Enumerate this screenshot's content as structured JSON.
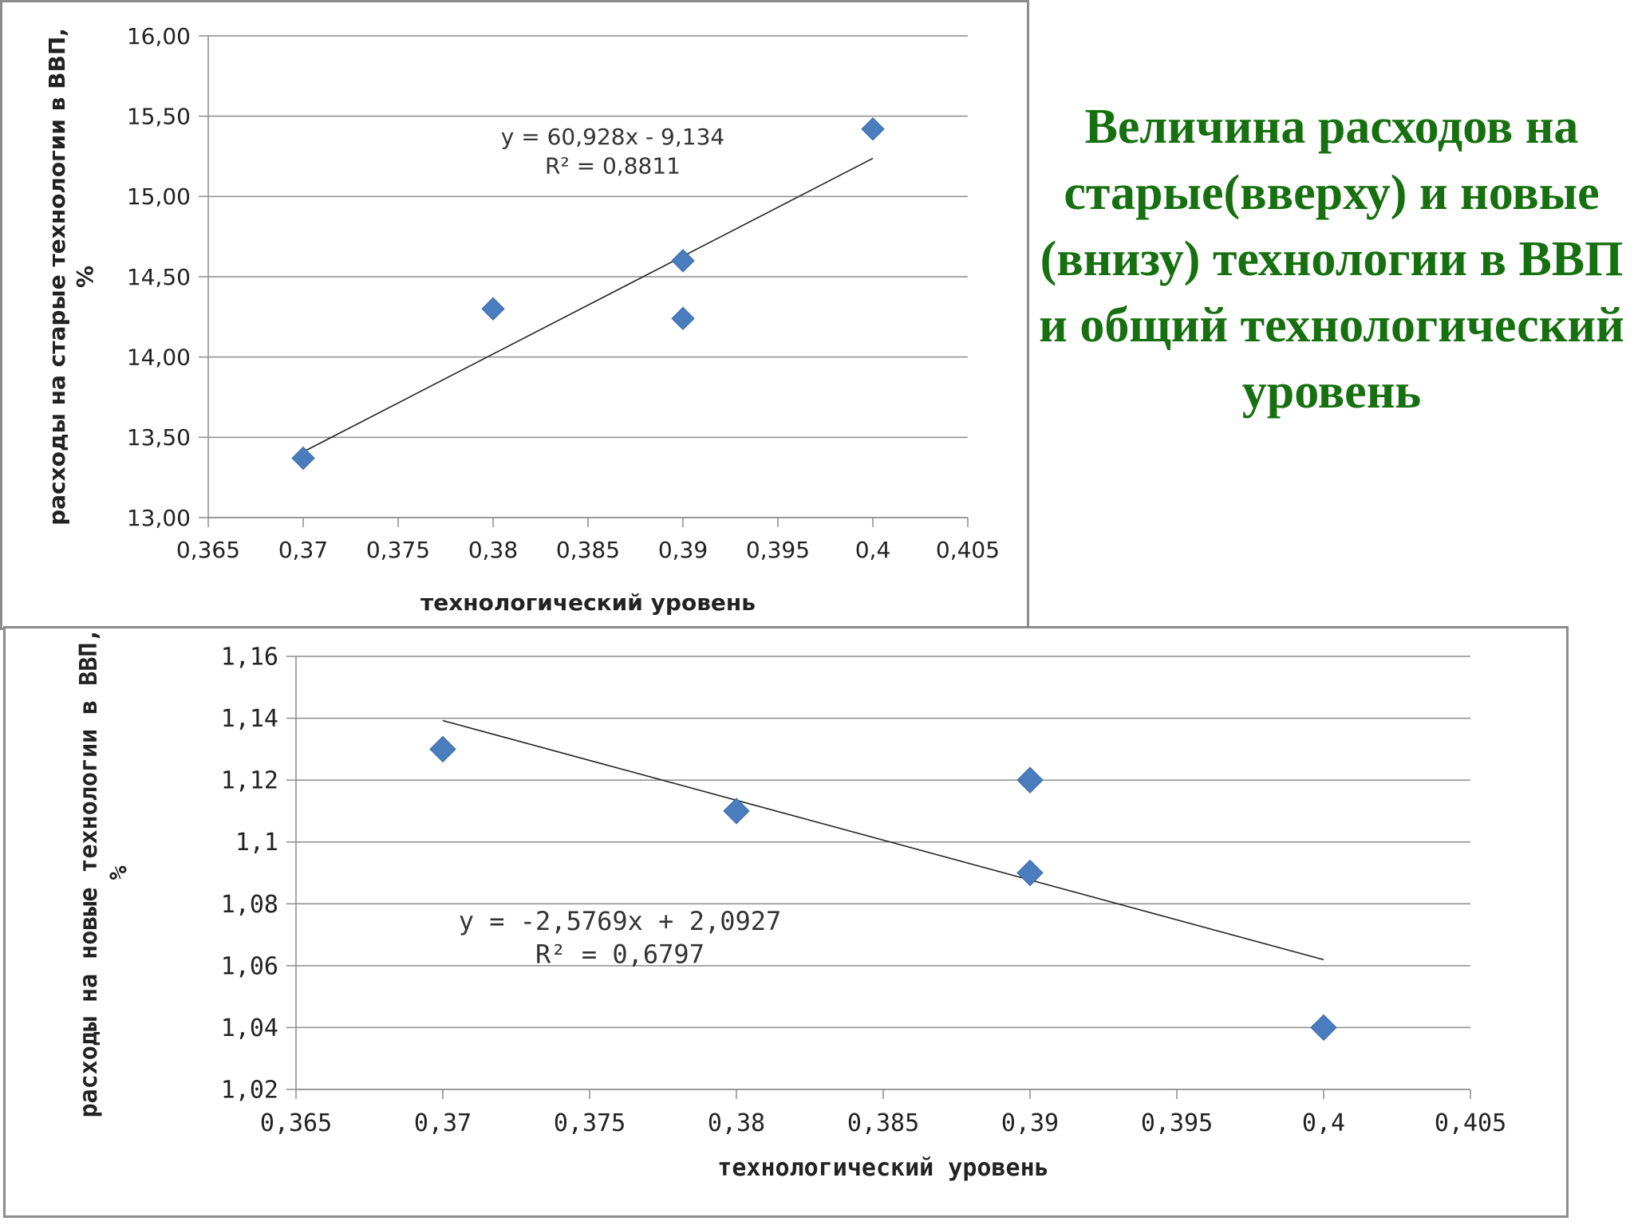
{
  "title": "Величина расходов на старые(вверху) и новые (внизу) технологии в ВВП и общий технологический уровень",
  "colors": {
    "marker": "#4a7dbd",
    "title": "#16700f",
    "grid": "#8c8c8c",
    "trend": "#222222"
  },
  "chart_data": [
    {
      "type": "scatter",
      "xlabel": "технологический уровень",
      "ylabel": "расходы на старые технологии в ВВП, %",
      "x_ticks": [
        "0,365",
        "0,37",
        "0,375",
        "0,38",
        "0,385",
        "0,39",
        "0,395",
        "0,4",
        "0,405"
      ],
      "y_ticks": [
        "13,00",
        "13,50",
        "14,00",
        "14,50",
        "15,00",
        "15,50",
        "16,00"
      ],
      "xlim": [
        0.365,
        0.405
      ],
      "ylim": [
        13.0,
        16.0
      ],
      "grid": true,
      "legend": "none",
      "points": [
        {
          "x": 0.37,
          "y": 13.37
        },
        {
          "x": 0.38,
          "y": 14.3
        },
        {
          "x": 0.39,
          "y": 14.6
        },
        {
          "x": 0.39,
          "y": 14.24
        },
        {
          "x": 0.4,
          "y": 15.42
        }
      ],
      "trendline": {
        "slope": 60.928,
        "intercept": -9.134,
        "x_range": [
          0.37,
          0.4
        ]
      },
      "equation": "y = 60,928x - 9,134",
      "r2": "R² = 0,8811"
    },
    {
      "type": "scatter",
      "xlabel": "технологический уровень",
      "ylabel": "расходы на новые технологии в ВВП, %",
      "x_ticks": [
        "0,365",
        "0,37",
        "0,375",
        "0,38",
        "0,385",
        "0,39",
        "0,395",
        "0,4",
        "0,405"
      ],
      "y_ticks": [
        "1,02",
        "1,04",
        "1,06",
        "1,08",
        "1,1",
        "1,12",
        "1,14",
        "1,16"
      ],
      "xlim": [
        0.365,
        0.405
      ],
      "ylim": [
        1.02,
        1.16
      ],
      "grid": true,
      "legend": "none",
      "points": [
        {
          "x": 0.37,
          "y": 1.13
        },
        {
          "x": 0.38,
          "y": 1.11
        },
        {
          "x": 0.39,
          "y": 1.12
        },
        {
          "x": 0.39,
          "y": 1.09
        },
        {
          "x": 0.4,
          "y": 1.04
        }
      ],
      "trendline": {
        "slope": -2.5769,
        "intercept": 2.0927,
        "x_range": [
          0.37,
          0.4
        ]
      },
      "equation": "y = -2,5769x + 2,0927",
      "r2": "R² = 0,6797"
    }
  ]
}
